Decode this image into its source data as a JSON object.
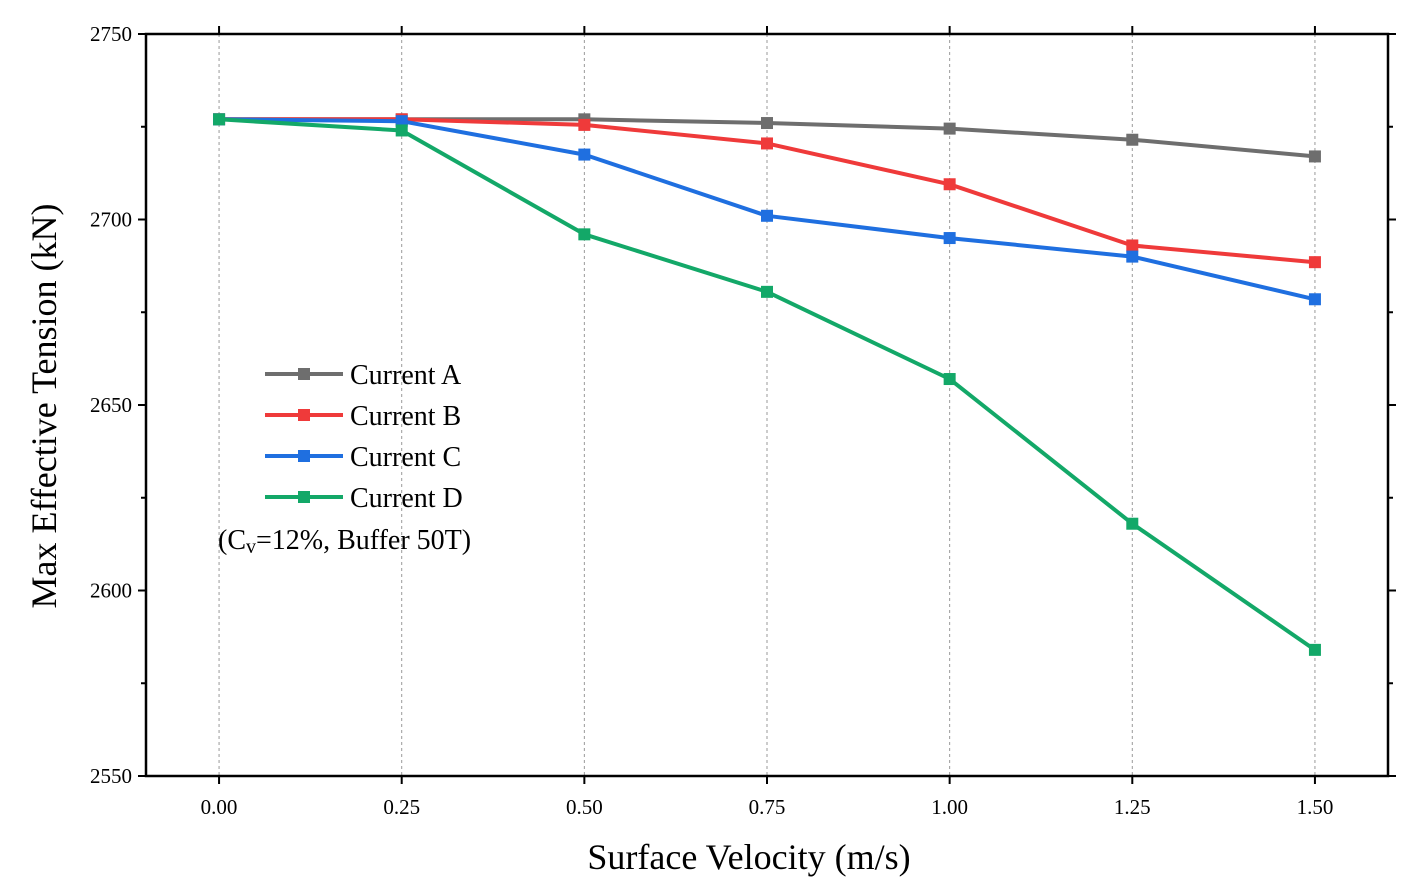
{
  "chart_data": {
    "type": "line",
    "title": "",
    "xlabel": "Surface Velocity (m/s)",
    "ylabel": "Max Effective Tension (kN)",
    "x": [
      0.0,
      0.25,
      0.5,
      0.75,
      1.0,
      1.25,
      1.5
    ],
    "x_tick_labels": [
      "0.00",
      "0.25",
      "0.50",
      "0.75",
      "1.00",
      "1.25",
      "1.50"
    ],
    "xlim": [
      -0.1,
      1.6
    ],
    "ylim": [
      2550,
      2750
    ],
    "y_ticks": [
      2550,
      2600,
      2650,
      2700,
      2750
    ],
    "y_tick_labels": [
      "2550",
      "2600",
      "2650",
      "2700",
      "2750"
    ],
    "grid": "vertical dashed",
    "legend_position": "middle-left",
    "annotation": {
      "prefix": "(C",
      "subscript": "v",
      "suffix": "=12%, Buffer 50T)"
    },
    "series": [
      {
        "name": "Current A",
        "color": "#6e6e6e",
        "marker": "square",
        "values": [
          2727,
          2727,
          2727,
          2726,
          2724.5,
          2721.5,
          2717
        ]
      },
      {
        "name": "Current B",
        "color": "#ef3a3a",
        "marker": "square",
        "values": [
          2727,
          2727,
          2725.5,
          2720.5,
          2709.5,
          2693,
          2688.5
        ]
      },
      {
        "name": "Current C",
        "color": "#1f6fe0",
        "marker": "square",
        "values": [
          2727,
          2726.5,
          2717.5,
          2701,
          2695,
          2690,
          2678.5
        ]
      },
      {
        "name": "Current D",
        "color": "#13a868",
        "marker": "square",
        "values": [
          2727,
          2724,
          2696,
          2680.5,
          2657,
          2618,
          2584
        ]
      }
    ]
  }
}
